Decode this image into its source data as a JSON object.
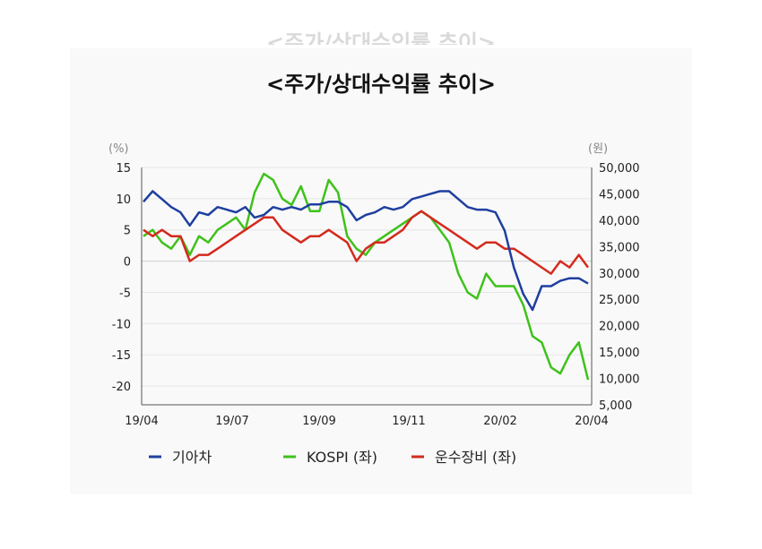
{
  "ghost_title": "<주가/상대수익률 추이>",
  "chart_data": {
    "type": "line",
    "title": "<주가/상대수익률 추이>",
    "y_left_unit": "(%)",
    "y_right_unit": "(원)",
    "ylim_left": [
      -23,
      15
    ],
    "ylim_right": [
      5000,
      50000
    ],
    "y_left_ticks": [
      "15",
      "10",
      "5",
      "0",
      "-5",
      "-10",
      "-15",
      "-20"
    ],
    "y_right_ticks": [
      "50,000",
      "45,000",
      "40,000",
      "35,000",
      "30,000",
      "25,000",
      "20,000",
      "15,000",
      "10,000",
      "5,000"
    ],
    "x_ticks": [
      "19/04",
      "19/07",
      "19/09",
      "19/11",
      "20/02",
      "20/04"
    ],
    "grid": true,
    "legend_position": "bottom",
    "series": [
      {
        "name": "기아차",
        "axis": "right",
        "color": "#1f3fa0",
        "values": [
          43500,
          45500,
          44000,
          42500,
          41500,
          39000,
          41500,
          41000,
          42500,
          42000,
          41500,
          42500,
          40500,
          41000,
          42500,
          42000,
          42500,
          42000,
          43000,
          43000,
          43500,
          43500,
          42500,
          40000,
          41000,
          41500,
          42500,
          42000,
          42500,
          44000,
          44500,
          45000,
          45500,
          45500,
          44000,
          42500,
          42000,
          42000,
          41500,
          38000,
          31000,
          26000,
          23000,
          27500,
          27500,
          28500,
          29000,
          29000,
          28000
        ]
      },
      {
        "name": "KOSPI (좌)",
        "axis": "left",
        "color": "#3ec21a",
        "values": [
          4,
          5,
          3,
          2,
          4,
          1,
          4,
          3,
          5,
          6,
          7,
          5,
          11,
          14,
          13,
          10,
          9,
          12,
          8,
          8,
          13,
          11,
          4,
          2,
          1,
          3,
          4,
          5,
          6,
          7,
          8,
          7,
          5,
          3,
          -2,
          -5,
          -6,
          -2,
          -4,
          -4,
          -4,
          -7,
          -12,
          -13,
          -17,
          -18,
          -15,
          -13,
          -19
        ]
      },
      {
        "name": "운수장비 (좌)",
        "axis": "left",
        "color": "#d42a1e",
        "values": [
          5,
          4,
          5,
          4,
          4,
          0,
          1,
          1,
          2,
          3,
          4,
          5,
          6,
          7,
          7,
          5,
          4,
          3,
          4,
          4,
          5,
          4,
          3,
          0,
          2,
          3,
          3,
          4,
          5,
          7,
          8,
          7,
          6,
          5,
          4,
          3,
          2,
          3,
          3,
          2,
          2,
          1,
          0,
          -1,
          -2,
          0,
          -1,
          1,
          -1
        ]
      }
    ]
  }
}
